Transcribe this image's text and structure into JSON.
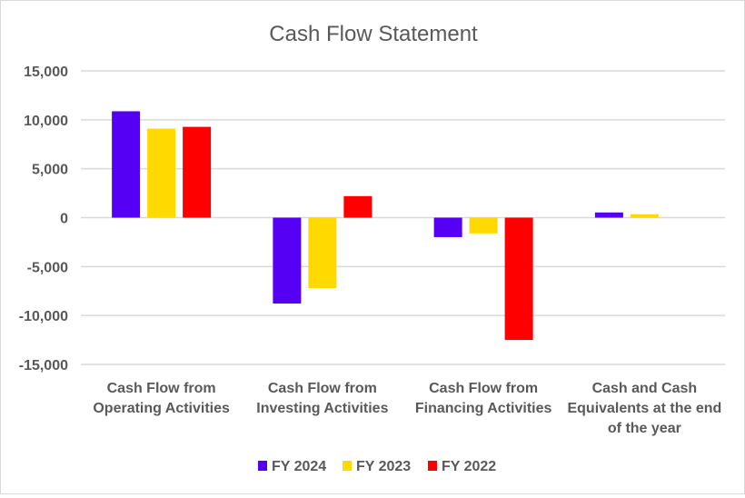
{
  "chart_data": {
    "type": "bar",
    "title": "Cash Flow Statement",
    "xlabel": "",
    "ylabel": "",
    "categories": [
      [
        "Cash Flow from",
        "Operating Activities"
      ],
      [
        "Cash Flow from",
        "Investing Activities"
      ],
      [
        "Cash Flow from",
        "Financing Activities"
      ],
      [
        "Cash and Cash",
        "Equivalents at the end",
        "of the year"
      ]
    ],
    "series": [
      {
        "name": "FY 2024",
        "color": "#5500f5",
        "values": [
          10870,
          -8780,
          -1990,
          530
        ]
      },
      {
        "name": "FY 2023",
        "color": "#ffd900",
        "values": [
          9100,
          -7200,
          -1610,
          345
        ]
      },
      {
        "name": "FY 2022",
        "color": "#ff0000",
        "values": [
          9280,
          2200,
          -12500,
          0
        ]
      }
    ],
    "ylim": [
      -15000,
      15000
    ],
    "yticks": [
      15000,
      10000,
      5000,
      0,
      -5000,
      -10000,
      -15000
    ],
    "ytick_labels": [
      "15,000",
      "10,000",
      "5,000",
      "0",
      "-5,000",
      "-10,000",
      "-15,000"
    ],
    "grid": true,
    "legend_position": "bottom"
  }
}
